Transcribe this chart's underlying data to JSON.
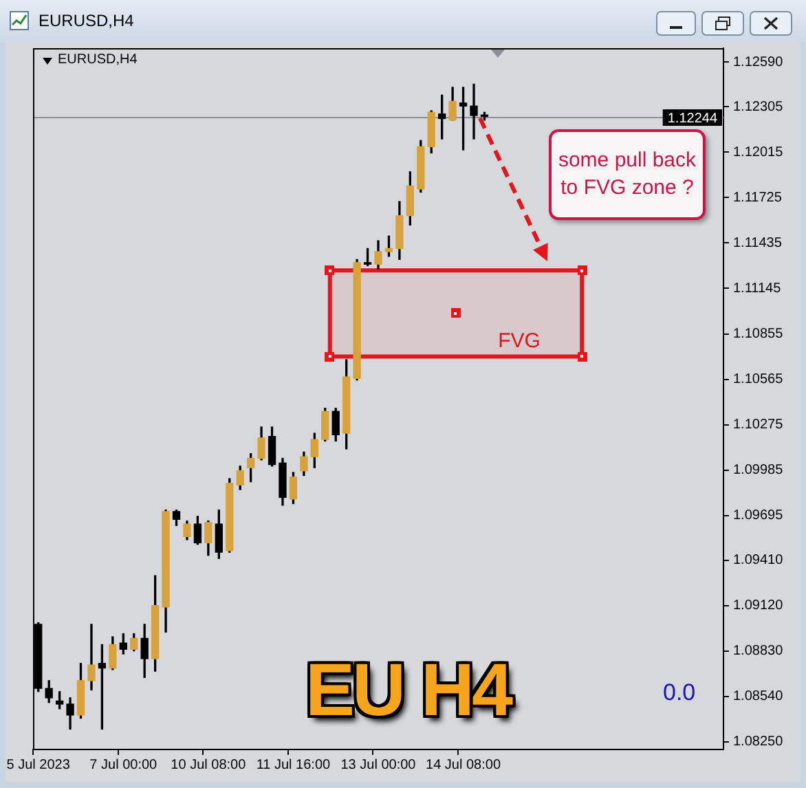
{
  "chart_data": {
    "type": "candlestick",
    "title": "EURUSD,H4",
    "categories": [
      "5 Jul 2023",
      null,
      null,
      null,
      null,
      null,
      null,
      null,
      "7 Jul 00:00",
      null,
      null,
      null,
      null,
      null,
      null,
      null,
      "10 Jul 08:00",
      null,
      null,
      null,
      null,
      null,
      null,
      null,
      "11 Jul 16:00",
      null,
      null,
      null,
      null,
      null,
      null,
      null,
      "13 Jul 00:00",
      null,
      null,
      null,
      null,
      null,
      null,
      null,
      "14 Jul 08:00",
      null,
      null,
      null,
      null,
      null,
      null,
      null,
      null,
      null,
      null,
      null,
      null,
      null,
      null,
      null,
      null,
      null,
      null,
      null,
      null,
      null,
      null,
      null,
      null
    ],
    "ohlc": [
      [
        1.09,
        1.0901,
        1.0857,
        1.0859
      ],
      [
        1.0859,
        1.0864,
        1.085,
        1.0853
      ],
      [
        1.0851,
        1.0857,
        1.0846,
        1.0849
      ],
      [
        1.0849,
        1.0853,
        1.0833,
        1.0842
      ],
      [
        1.0842,
        1.0875,
        1.084,
        1.0864
      ],
      [
        1.0864,
        1.09,
        1.0858,
        1.0874
      ],
      [
        1.0875,
        1.0887,
        1.0833,
        1.0872
      ],
      [
        1.0872,
        1.0892,
        1.0871,
        1.0887
      ],
      [
        1.0888,
        1.0894,
        1.0881,
        1.0884
      ],
      [
        1.0884,
        1.0894,
        1.0883,
        1.0891
      ],
      [
        1.0891,
        1.09,
        1.0866,
        1.0878
      ],
      [
        1.0878,
        1.0931,
        1.087,
        1.0912
      ],
      [
        1.0911,
        1.0973,
        1.0895,
        1.0972
      ],
      [
        1.0972,
        1.0973,
        1.0963,
        1.0967
      ],
      [
        1.0956,
        1.0966,
        1.0954,
        1.0964
      ],
      [
        1.0964,
        1.0969,
        1.0951,
        1.0952
      ],
      [
        1.0952,
        1.0966,
        1.0944,
        1.0965
      ],
      [
        1.0964,
        1.0973,
        1.0942,
        1.0946
      ],
      [
        1.0947,
        1.0993,
        1.0946,
        1.099
      ],
      [
        1.0989,
        1.1001,
        1.0986,
        1.0998
      ],
      [
        1.1,
        1.1009,
        1.0991,
        1.1006
      ],
      [
        1.1006,
        1.1026,
        1.1005,
        1.1019
      ],
      [
        1.102,
        1.1026,
        1.1001,
        1.1002
      ],
      [
        1.1003,
        1.1006,
        1.0976,
        1.0981
      ],
      [
        1.098,
        1.0997,
        1.0977,
        1.0994
      ],
      [
        1.0998,
        1.101,
        1.0995,
        1.1007
      ],
      [
        1.1007,
        1.1022,
        1.1,
        1.1018
      ],
      [
        1.1018,
        1.1038,
        1.1017,
        1.1036
      ],
      [
        1.1036,
        1.1038,
        1.1017,
        1.1021
      ],
      [
        1.1022,
        1.1069,
        1.1012,
        1.1058
      ],
      [
        1.1057,
        1.1133,
        1.1056,
        1.1131
      ],
      [
        1.1131,
        1.114,
        1.1129,
        1.113
      ],
      [
        1.113,
        1.1145,
        1.1127,
        1.1138
      ],
      [
        1.1138,
        1.1148,
        1.1135,
        1.114
      ],
      [
        1.114,
        1.117,
        1.1133,
        1.1161
      ],
      [
        1.1161,
        1.1189,
        1.1155,
        1.118
      ],
      [
        1.1178,
        1.1209,
        1.1176,
        1.1205
      ],
      [
        1.1205,
        1.1228,
        1.1201,
        1.1227
      ],
      [
        1.1226,
        1.1238,
        1.121,
        1.1223
      ],
      [
        1.1222,
        1.1243,
        1.1222,
        1.1234
      ],
      [
        1.1233,
        1.1243,
        1.1203,
        1.1231
      ],
      [
        1.1231,
        1.1245,
        1.121,
        1.1225
      ],
      [
        1.1225,
        1.1227,
        1.1222,
        1.12244
      ],
      null,
      null,
      null,
      null,
      null,
      null,
      null,
      null,
      null,
      null,
      null,
      null,
      null,
      null,
      null,
      null,
      null,
      null,
      null,
      null,
      null,
      null
    ],
    "colors": [
      "#000000",
      "#000000",
      "#000000",
      "#000000",
      "#d8a23c",
      "#d8a23c",
      "#000000",
      "#d8a23c",
      "#000000",
      "#d8a23c",
      "#000000",
      "#d8a23c",
      "#d8a23c",
      "#000000",
      "#d8a23c",
      "#000000",
      "#d8a23c",
      "#000000",
      "#d8a23c",
      "#d8a23c",
      "#d8a23c",
      "#d8a23c",
      "#000000",
      "#000000",
      "#d8a23c",
      "#d8a23c",
      "#d8a23c",
      "#d8a23c",
      "#000000",
      "#d8a23c",
      "#d8a23c",
      "#000000",
      "#d8a23c",
      "#d8a23c",
      "#d8a23c",
      "#d8a23c",
      "#d8a23c",
      "#d8a23c",
      "#000000",
      "#d8a23c",
      "#000000",
      "#000000",
      "#000000",
      null,
      null,
      null,
      null,
      null,
      null,
      null,
      null,
      null,
      null,
      null,
      null,
      null,
      null,
      null,
      null,
      null,
      null,
      null,
      null,
      null,
      null
    ],
    "ylim": [
      1.082,
      1.1268
    ],
    "yticks": [
      {
        "value": 1.0825,
        "label": "1.08250"
      },
      {
        "value": 1.0854,
        "label": "1.08540"
      },
      {
        "value": 1.0883,
        "label": "1.08830"
      },
      {
        "value": 1.0912,
        "label": "1.09120"
      },
      {
        "value": 1.0941,
        "label": "1.09410"
      },
      {
        "value": 1.09695,
        "label": "1.09695"
      },
      {
        "value": 1.09985,
        "label": "1.09985"
      },
      {
        "value": 1.10275,
        "label": "1.10275"
      },
      {
        "value": 1.10565,
        "label": "1.10565"
      },
      {
        "value": 1.10855,
        "label": "1.10855"
      },
      {
        "value": 1.11145,
        "label": "1.11145"
      },
      {
        "value": 1.11435,
        "label": "1.11435"
      },
      {
        "value": 1.11725,
        "label": "1.11725"
      },
      {
        "value": 1.12015,
        "label": "1.12015"
      },
      {
        "value": 1.12305,
        "label": "1.12305"
      },
      {
        "value": 1.1259,
        "label": "1.12590"
      }
    ],
    "grid": false,
    "ref_lines": [
      {
        "axis": "y",
        "value": 1.12244,
        "label": "1.12244",
        "color": "#8a9099"
      }
    ],
    "bands": [
      {
        "axis": "y",
        "from": 1.1071,
        "to": 1.1126,
        "label": "FVG",
        "color": "#e8141c"
      }
    ],
    "annotations": [
      "some pull back to FVG zone ?",
      "EU H4",
      "0.0"
    ]
  }
}
